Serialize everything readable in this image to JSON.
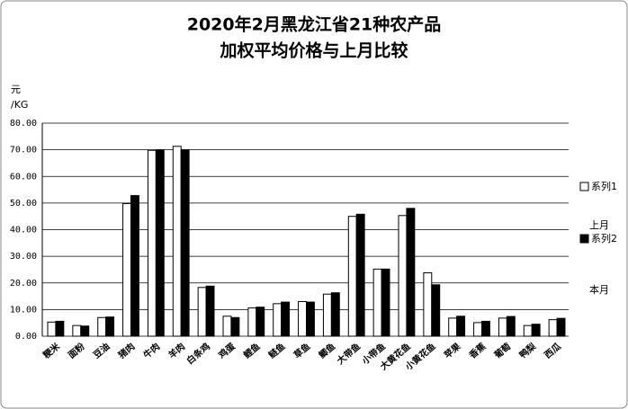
{
  "chart_data": {
    "type": "bar",
    "title": "2020年2月黑龙江省21种农产品",
    "subtitle": "加权平均价格与上月比较",
    "y_label": "元",
    "y_unit": "/KG",
    "categories": [
      "粳米",
      "面粉",
      "豆油",
      "猪肉",
      "牛肉",
      "羊肉",
      "白条鸡",
      "鸡蛋",
      "鲤鱼",
      "鲢鱼",
      "草鱼",
      "鲫鱼",
      "大带鱼",
      "小带鱼",
      "大黄花鱼",
      "小黄花鱼",
      "苹果",
      "香蕉",
      "葡萄",
      "鸭梨",
      "西瓜"
    ],
    "series": [
      {
        "name": "系列1",
        "color": "#ffffff",
        "values": [
          5.3,
          4.0,
          7.0,
          49.8,
          69.8,
          71.3,
          18.3,
          7.5,
          10.6,
          12.2,
          13.0,
          15.8,
          45.0,
          25.2,
          45.3,
          23.8,
          6.8,
          5.1,
          6.8,
          4.0,
          6.2
        ]
      },
      {
        "name": "系列2",
        "color": "#000000",
        "values": [
          5.6,
          3.8,
          7.2,
          52.8,
          70.0,
          70.0,
          18.8,
          7.0,
          10.9,
          12.8,
          12.8,
          16.3,
          45.8,
          25.2,
          48.0,
          19.3,
          7.5,
          5.6,
          7.4,
          4.5,
          6.7
        ]
      }
    ],
    "annotations": [
      "上月",
      "本月"
    ],
    "ylim": [
      0,
      80
    ],
    "yticks": [
      {
        "value": 0,
        "label": "0.00"
      },
      {
        "value": 10,
        "label": "10.00"
      },
      {
        "value": 20,
        "label": "20.00"
      },
      {
        "value": 30,
        "label": "30.00"
      },
      {
        "value": 40,
        "label": "40.00"
      },
      {
        "value": 50,
        "label": "50.00"
      },
      {
        "value": 60,
        "label": "60.00"
      },
      {
        "value": 70,
        "label": "70.00"
      },
      {
        "value": 80,
        "label": "80.00"
      }
    ],
    "grid": true,
    "legend": "right"
  }
}
